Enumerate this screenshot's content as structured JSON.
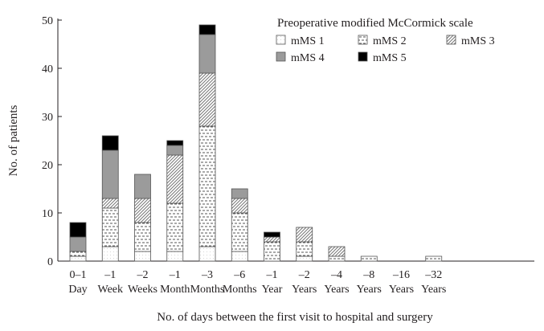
{
  "chart_data": {
    "type": "bar",
    "stacked": true,
    "title": "",
    "xlabel": "No. of days between the first visit to hospital and surgery",
    "ylabel": "No. of patients",
    "ylim": [
      0,
      50
    ],
    "yticks": [
      0,
      10,
      20,
      30,
      40,
      50
    ],
    "grid": false,
    "legend_title": "Preoperative modified McCormick scale",
    "legend_position": "top-right",
    "categories": [
      [
        "0–1",
        "Day"
      ],
      [
        "–1",
        "Week"
      ],
      [
        "–2",
        "Weeks"
      ],
      [
        "–1",
        "Month"
      ],
      [
        "–3",
        "Months"
      ],
      [
        "–6",
        "Months"
      ],
      [
        "–1",
        "Year"
      ],
      [
        "–2",
        "Years"
      ],
      [
        "–4",
        "Years"
      ],
      [
        "–8",
        "Years"
      ],
      [
        "–16",
        "Years"
      ],
      [
        "–32",
        "Years"
      ]
    ],
    "series": [
      {
        "name": "mMS 1",
        "pattern": "mms1",
        "values": [
          1,
          3,
          2,
          2,
          3,
          2,
          0,
          1,
          0,
          0,
          0,
          0
        ]
      },
      {
        "name": "mMS 2",
        "pattern": "mms2",
        "values": [
          1,
          8,
          6,
          10,
          25,
          8,
          4,
          3,
          1,
          1,
          0,
          1
        ]
      },
      {
        "name": "mMS 3",
        "pattern": "mms3",
        "values": [
          0,
          2,
          5,
          10,
          11,
          3,
          1,
          3,
          2,
          0,
          0,
          0
        ]
      },
      {
        "name": "mMS 4",
        "pattern": "mms4",
        "values": [
          3,
          10,
          5,
          2,
          8,
          2,
          0,
          0,
          0,
          0,
          0,
          0
        ]
      },
      {
        "name": "mMS 5",
        "pattern": "mms5",
        "values": [
          3,
          3,
          0,
          1,
          2,
          0,
          1,
          0,
          0,
          0,
          0,
          0
        ]
      }
    ]
  }
}
